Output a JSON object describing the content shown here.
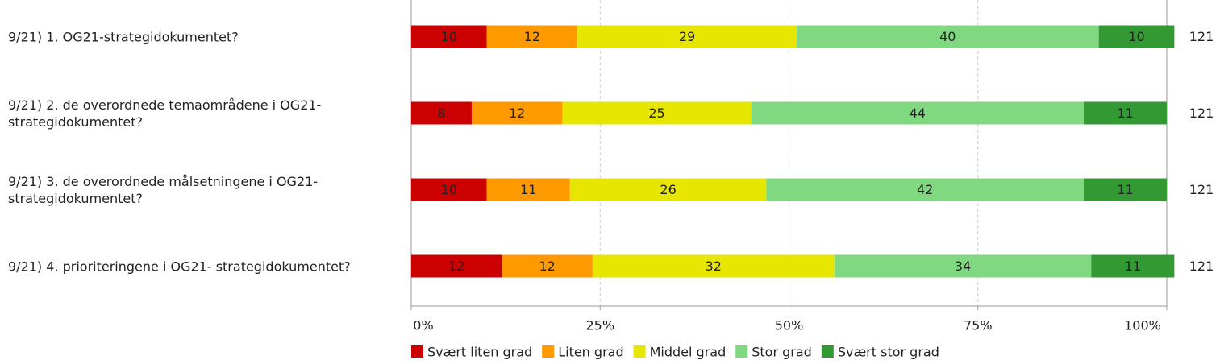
{
  "chart_data": {
    "type": "stacked-bar-horizontal",
    "categories": [
      "9/21) 1. OG21-strategidokumentet?",
      "9/21) 2. de overordnede temaområdene i OG21-strategidokumentet?",
      "9/21) 3. de overordnede målsetningene i OG21-strategidokumentet?",
      "9/21) 4. prioriteringene i OG21- strategidokumentet?"
    ],
    "series": [
      {
        "name": "Svært liten grad",
        "color": "#cc0000",
        "values": [
          10,
          8,
          10,
          12
        ]
      },
      {
        "name": "Liten grad",
        "color": "#ff9900",
        "values": [
          12,
          12,
          11,
          12
        ]
      },
      {
        "name": "Middel grad",
        "color": "#e6e600",
        "values": [
          29,
          25,
          26,
          32
        ]
      },
      {
        "name": "Stor grad",
        "color": "#80d980",
        "values": [
          40,
          44,
          42,
          34
        ]
      },
      {
        "name": "Svært stor grad",
        "color": "#339933",
        "values": [
          10,
          11,
          11,
          11
        ]
      }
    ],
    "n": [
      121,
      121,
      121,
      121
    ],
    "xlim": [
      0,
      100
    ],
    "xticks": [
      {
        "value": 0,
        "label": "0%"
      },
      {
        "value": 25,
        "label": "25%"
      },
      {
        "value": 50,
        "label": "50%"
      },
      {
        "value": 75,
        "label": "75%"
      },
      {
        "value": 100,
        "label": "100%"
      }
    ],
    "grid": true
  }
}
